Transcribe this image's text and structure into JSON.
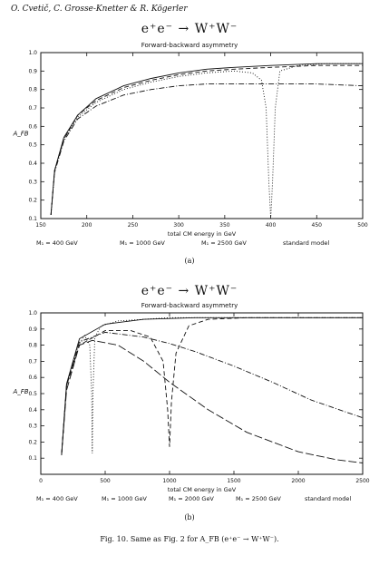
{
  "header": {
    "authors": "O. Cvetič, C. Grosse-Knetter & R. Kögerler"
  },
  "panel_a": {
    "process": "e⁺e⁻  →  W⁺W⁻",
    "subtitle": "Forward-backward asymmetry",
    "ylabel": "A_FB",
    "xlabel": "total CM energy in GeV",
    "label": "(a)",
    "legend": [
      "M₁ = 400 GeV",
      "M₁ = 1000 GeV",
      "M₁ = 2500 GeV",
      "standard model"
    ]
  },
  "panel_b": {
    "process": "e⁺e⁻  →  W⁺W⁻",
    "subtitle": "Forward-backward asymmetry",
    "ylabel": "A_FB",
    "xlabel": "total CM energy in GeV",
    "label": "(b)",
    "legend": [
      "M₁ = 400 GeV",
      "M₁ = 1000 GeV",
      "M₁ = 2000 GeV",
      "M₁ = 2500 GeV",
      "standard model"
    ]
  },
  "caption": "Fig. 10. Same as Fig. 2 for A_FB (e⁺e⁻ → W⁺W⁻).",
  "chart_data": [
    {
      "type": "line",
      "title": "Forward-backward asymmetry",
      "xlabel": "total CM energy in GeV",
      "ylabel": "A_FB",
      "xlim": [
        150,
        500
      ],
      "ylim": [
        0.1,
        1.0
      ],
      "xticks": [
        150,
        200,
        250,
        300,
        350,
        400,
        450,
        500
      ],
      "yticks": [
        0.1,
        0.2,
        0.3,
        0.4,
        0.5,
        0.6,
        0.7,
        0.8,
        0.9,
        1.0
      ],
      "series": [
        {
          "name": "M₁ = 400 GeV",
          "style": "dotted",
          "x": [
            161,
            165,
            175,
            190,
            210,
            240,
            270,
            300,
            330,
            360,
            380,
            390,
            395,
            398,
            400,
            402,
            405,
            410,
            430,
            460,
            500
          ],
          "y": [
            0.12,
            0.36,
            0.53,
            0.65,
            0.73,
            0.8,
            0.84,
            0.87,
            0.89,
            0.9,
            0.89,
            0.85,
            0.7,
            0.3,
            0.1,
            0.3,
            0.7,
            0.9,
            0.93,
            0.94,
            0.94
          ]
        },
        {
          "name": "M₁ = 1000 GeV",
          "style": "dashed",
          "x": [
            161,
            165,
            175,
            190,
            210,
            240,
            270,
            300,
            330,
            360,
            400,
            450,
            500
          ],
          "y": [
            0.12,
            0.36,
            0.53,
            0.66,
            0.74,
            0.81,
            0.85,
            0.88,
            0.9,
            0.91,
            0.92,
            0.93,
            0.93
          ]
        },
        {
          "name": "M₁ = 2500 GeV",
          "style": "dashdot",
          "x": [
            161,
            165,
            175,
            190,
            210,
            240,
            270,
            300,
            330,
            360,
            400,
            450,
            500
          ],
          "y": [
            0.12,
            0.35,
            0.52,
            0.64,
            0.71,
            0.77,
            0.8,
            0.82,
            0.83,
            0.83,
            0.83,
            0.83,
            0.82
          ]
        },
        {
          "name": "standard model",
          "style": "solid",
          "x": [
            161,
            165,
            175,
            190,
            210,
            240,
            270,
            300,
            330,
            360,
            400,
            450,
            500
          ],
          "y": [
            0.12,
            0.36,
            0.54,
            0.66,
            0.75,
            0.82,
            0.86,
            0.89,
            0.91,
            0.92,
            0.93,
            0.94,
            0.94
          ]
        }
      ]
    },
    {
      "type": "line",
      "title": "Forward-backward asymmetry",
      "xlabel": "total CM energy in GeV",
      "ylabel": "A_FB",
      "xlim": [
        0,
        2500
      ],
      "ylim": [
        0.0,
        1.0
      ],
      "xticks": [
        0,
        500,
        1000,
        1500,
        2000,
        2500
      ],
      "yticks": [
        0.1,
        0.2,
        0.3,
        0.4,
        0.5,
        0.6,
        0.7,
        0.8,
        0.9,
        1.0
      ],
      "series": [
        {
          "name": "M₁ = 400 GeV",
          "style": "dotted",
          "x": [
            161,
            200,
            280,
            340,
            380,
            395,
            400,
            405,
            420,
            470,
            600,
            1000,
            1500,
            2000,
            2500
          ],
          "y": [
            0.12,
            0.55,
            0.78,
            0.86,
            0.8,
            0.5,
            0.13,
            0.5,
            0.85,
            0.92,
            0.95,
            0.97,
            0.97,
            0.97,
            0.97
          ]
        },
        {
          "name": "M₁ = 1000 GeV",
          "style": "dashed",
          "x": [
            161,
            200,
            300,
            500,
            700,
            850,
            950,
            985,
            1000,
            1015,
            1050,
            1150,
            1300,
            1600,
            2000,
            2500
          ],
          "y": [
            0.12,
            0.55,
            0.8,
            0.89,
            0.89,
            0.85,
            0.7,
            0.4,
            0.17,
            0.45,
            0.75,
            0.92,
            0.96,
            0.97,
            0.97,
            0.97
          ]
        },
        {
          "name": "M₁ = 2000 GeV",
          "style": "dashdot",
          "x": [
            161,
            200,
            300,
            500,
            800,
            1000,
            1200,
            1500,
            1800,
            2100,
            2500
          ],
          "y": [
            0.12,
            0.55,
            0.82,
            0.88,
            0.85,
            0.81,
            0.76,
            0.67,
            0.57,
            0.46,
            0.35
          ]
        },
        {
          "name": "M₁ = 2500 GeV",
          "style": "longdash",
          "x": [
            161,
            200,
            300,
            400,
            600,
            800,
            1000,
            1300,
            1600,
            2000,
            2300,
            2500
          ],
          "y": [
            0.12,
            0.52,
            0.8,
            0.83,
            0.8,
            0.7,
            0.57,
            0.4,
            0.26,
            0.14,
            0.09,
            0.07
          ]
        },
        {
          "name": "standard model",
          "style": "solid",
          "x": [
            161,
            200,
            300,
            500,
            800,
            1200,
            1800,
            2500
          ],
          "y": [
            0.12,
            0.56,
            0.84,
            0.93,
            0.96,
            0.97,
            0.97,
            0.97
          ]
        }
      ]
    }
  ]
}
